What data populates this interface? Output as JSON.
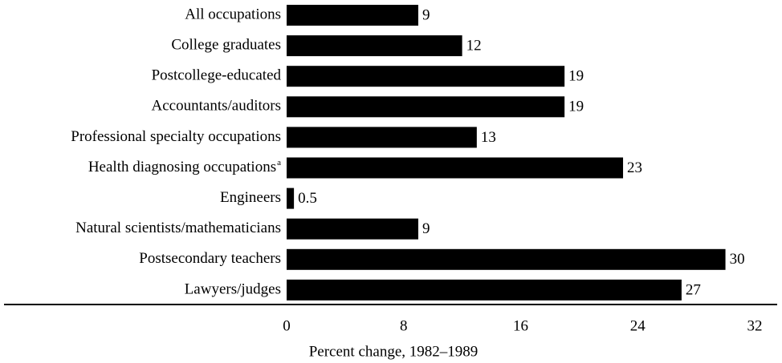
{
  "chart_data": {
    "type": "bar",
    "orientation": "horizontal",
    "categories": [
      "All occupations",
      "College graduates",
      "Postcollege-educated",
      "Accountants/auditors",
      "Professional specialty occupations",
      "Health diagnosing occupations",
      "Engineers",
      "Natural scientists/mathematicians",
      "Postsecondary teachers",
      "Lawyers/judges"
    ],
    "category_marks": [
      null,
      null,
      null,
      null,
      null,
      "a",
      null,
      null,
      null,
      null
    ],
    "values": [
      9,
      12,
      19,
      19,
      13,
      23,
      0.5,
      9,
      30,
      27
    ],
    "color": "#000000",
    "xlim": [
      0,
      32
    ],
    "xticks": [
      0,
      8,
      16,
      24,
      32
    ],
    "x_label": "Percent change, 1982–1989",
    "grid": false
  }
}
